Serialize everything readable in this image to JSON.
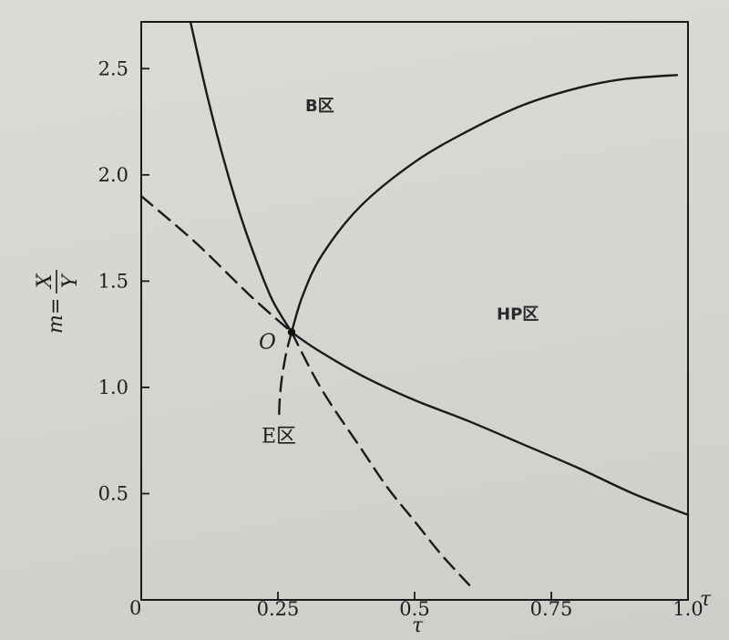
{
  "chart_data": {
    "type": "line",
    "title": "",
    "xlabel": "τ",
    "xlabel_end": "τ",
    "ylabel": {
      "prefix": "m=",
      "numerator": "X",
      "denominator": "Y"
    },
    "origin_label": "0",
    "xlim": [
      0,
      1.0
    ],
    "ylim": [
      0,
      2.72
    ],
    "x_ticks": [
      {
        "value": 0.25,
        "label": "0.25"
      },
      {
        "value": 0.5,
        "label": "0.5"
      },
      {
        "value": 0.75,
        "label": "0.75"
      },
      {
        "value": 1.0,
        "label": "1.0"
      }
    ],
    "y_ticks": [
      {
        "value": 0.5,
        "label": "0.5"
      },
      {
        "value": 1.0,
        "label": "1.0"
      },
      {
        "value": 1.5,
        "label": "1.5"
      },
      {
        "value": 2.0,
        "label": "2.0"
      },
      {
        "value": 2.5,
        "label": "2.5"
      }
    ],
    "grid": false,
    "series": [
      {
        "style": "solid",
        "points": [
          [
            0.09,
            2.72
          ],
          [
            0.12,
            2.38
          ],
          [
            0.15,
            2.08
          ],
          [
            0.18,
            1.82
          ],
          [
            0.21,
            1.6
          ],
          [
            0.24,
            1.41
          ],
          [
            0.275,
            1.26
          ]
        ]
      },
      {
        "style": "solid",
        "points": [
          [
            0.275,
            1.26
          ],
          [
            0.295,
            1.43
          ],
          [
            0.33,
            1.62
          ],
          [
            0.4,
            1.85
          ],
          [
            0.5,
            2.06
          ],
          [
            0.6,
            2.21
          ],
          [
            0.7,
            2.33
          ],
          [
            0.8,
            2.41
          ],
          [
            0.88,
            2.45
          ],
          [
            0.98,
            2.47
          ]
        ]
      },
      {
        "style": "solid",
        "points": [
          [
            0.275,
            1.26
          ],
          [
            0.32,
            1.18
          ],
          [
            0.4,
            1.06
          ],
          [
            0.5,
            0.94
          ],
          [
            0.6,
            0.84
          ],
          [
            0.7,
            0.73
          ],
          [
            0.8,
            0.62
          ],
          [
            0.9,
            0.5
          ],
          [
            1.0,
            0.4
          ]
        ]
      },
      {
        "style": "dashed",
        "points": [
          [
            0.0,
            1.9
          ],
          [
            0.1,
            1.68
          ],
          [
            0.2,
            1.43
          ],
          [
            0.275,
            1.26
          ]
        ]
      },
      {
        "style": "dashed",
        "points": [
          [
            0.275,
            1.26
          ],
          [
            0.33,
            0.99
          ],
          [
            0.4,
            0.72
          ],
          [
            0.45,
            0.53
          ],
          [
            0.5,
            0.37
          ],
          [
            0.55,
            0.21
          ],
          [
            0.6,
            0.07
          ]
        ]
      },
      {
        "style": "dashed",
        "points": [
          [
            0.275,
            1.26
          ],
          [
            0.265,
            1.16
          ],
          [
            0.257,
            1.04
          ],
          [
            0.253,
            0.93
          ],
          [
            0.252,
            0.84
          ]
        ]
      }
    ],
    "point_O": {
      "label": "O",
      "x": 0.275,
      "y": 1.26
    },
    "annotations": [
      {
        "text": "B区",
        "x": 0.3,
        "y": 2.3,
        "kind": "bold"
      },
      {
        "text": "HP区",
        "x": 0.65,
        "y": 1.32,
        "kind": "bold"
      },
      {
        "text": "E区",
        "x": 0.22,
        "y": 0.74,
        "kind": "serif"
      }
    ]
  }
}
